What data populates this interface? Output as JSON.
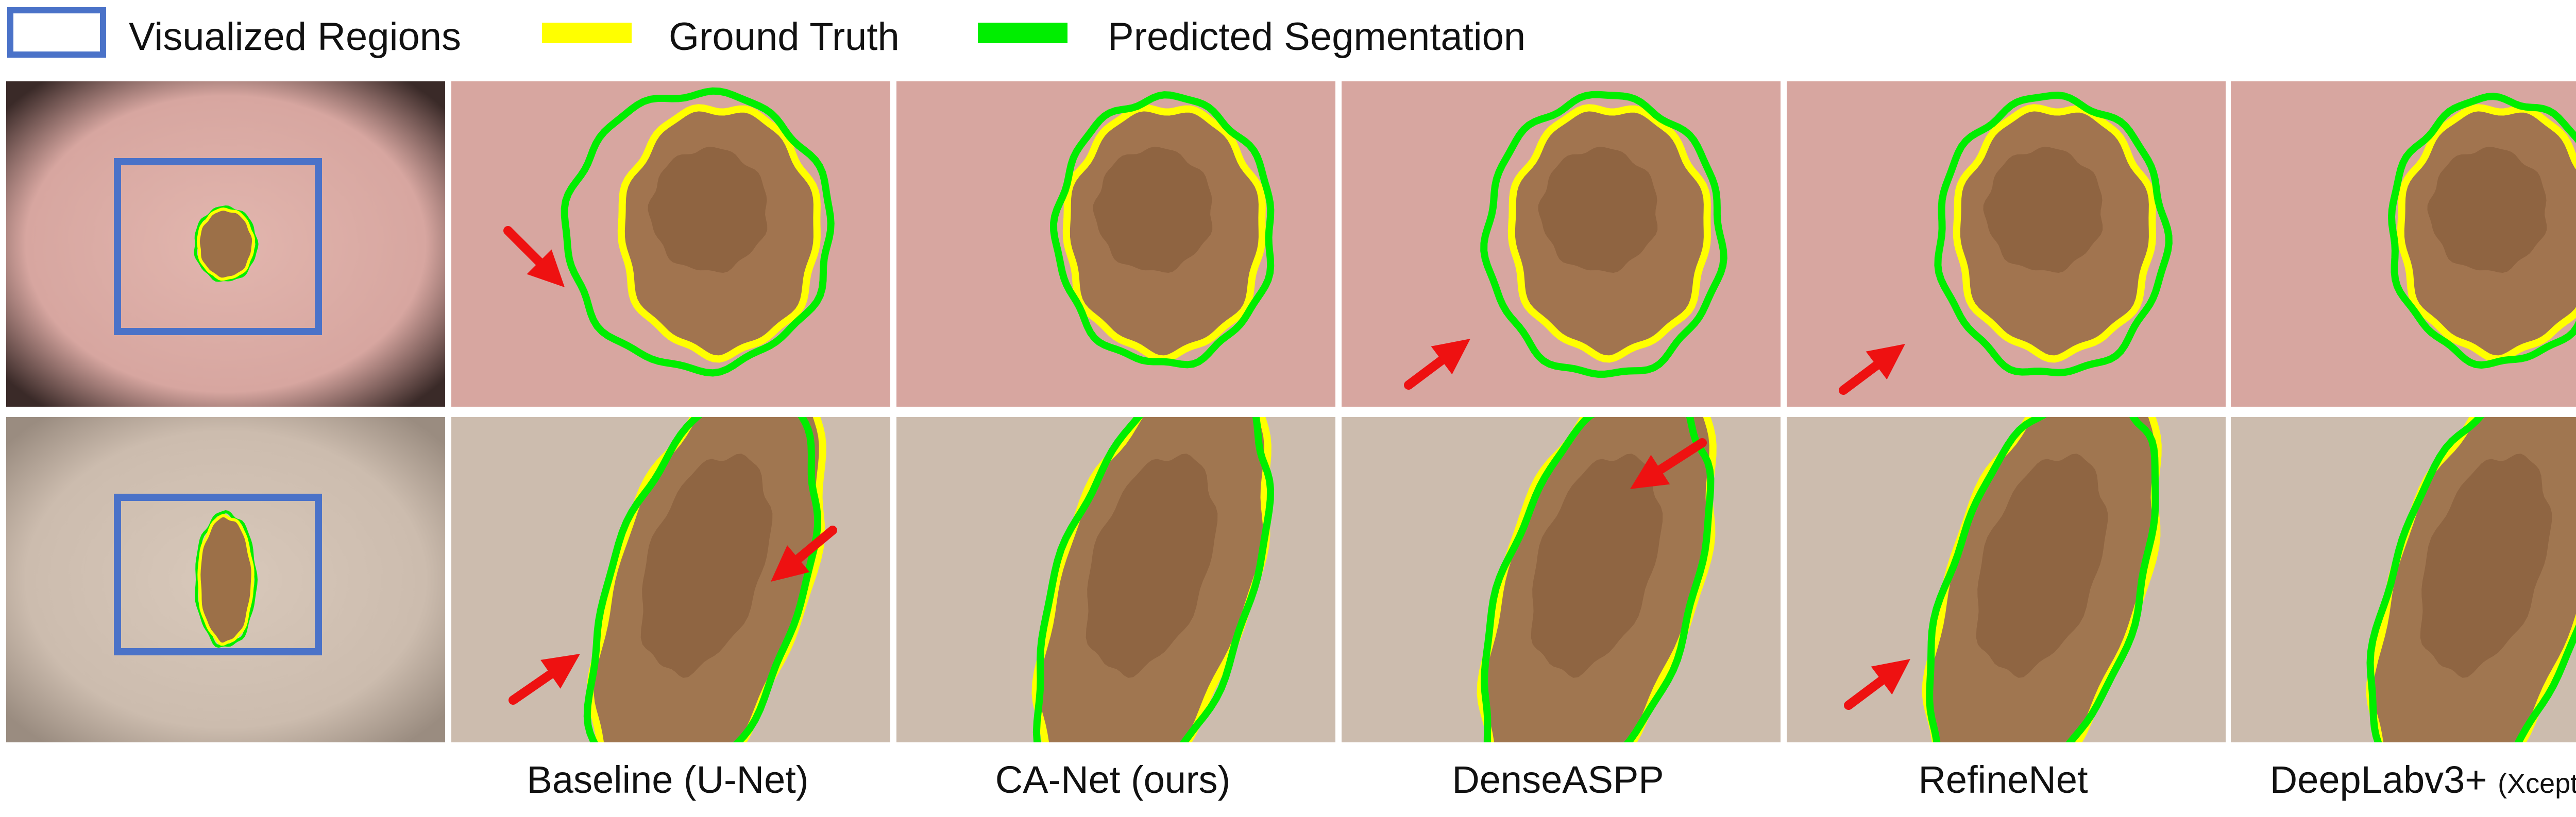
{
  "legend": {
    "visualized_regions": "Visualized Regions",
    "ground_truth": "Ground Truth",
    "predicted_segmentation": "Predicted Segmentation"
  },
  "captions": {
    "baseline": "Baseline (U-Net)",
    "canet": "CA-Net (ours)",
    "denseaspp": "DenseASPP",
    "refinenet": "RefineNet",
    "deeplab_main": "DeepLabv3+",
    "deeplab_sub": "(Xception)"
  },
  "colors": {
    "region_box": "#4a72c8",
    "ground_truth": "#ffff00",
    "predicted": "#00ee00",
    "arrow": "#ee1111",
    "skin_top": "#d7a6a0",
    "skin_bottom": "#ccbcae",
    "lesion": "#9c7048"
  }
}
